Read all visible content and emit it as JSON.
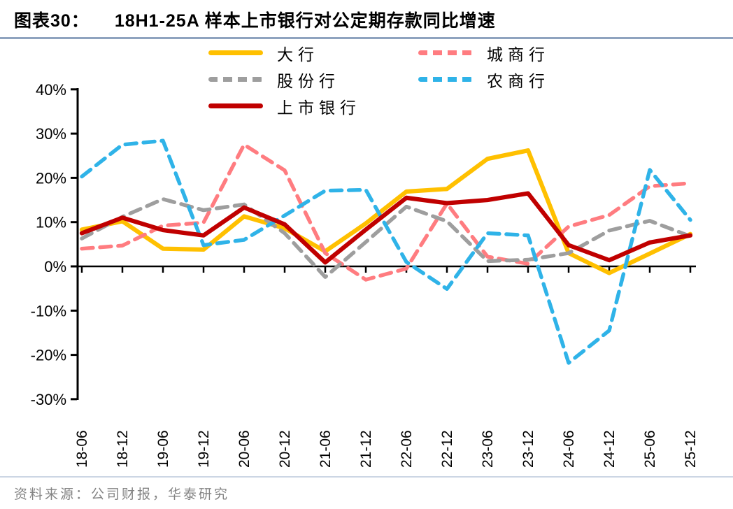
{
  "header": {
    "label": "图表30：",
    "title": "18H1-25A 样本上市银行对公定期存款同比增速"
  },
  "source": {
    "text": "资料来源：公司财报，华泰研究"
  },
  "colors": {
    "title_rule": "#8fa3bf",
    "source_rule": "#ccd6e4",
    "axis": "#000000",
    "source_text": "#848484"
  },
  "chart_data": {
    "type": "line",
    "title": "18H1-25A 样本上市银行对公定期存款同比增速",
    "xlabel": "",
    "ylabel": "",
    "ylim": [
      -30,
      40
    ],
    "ytick_step": 10,
    "ytick_format": "percent",
    "grid": false,
    "legend_position": "top",
    "categories": [
      "18-06",
      "18-12",
      "19-06",
      "19-12",
      "20-06",
      "20-12",
      "21-06",
      "21-12",
      "22-06",
      "22-12",
      "23-06",
      "23-12",
      "24-06",
      "24-12",
      "25-06",
      "25-12"
    ],
    "series": [
      {
        "name": "大行",
        "color": "#FFC000",
        "style": "solid",
        "values": [
          8.3,
          10.2,
          4.0,
          3.8,
          11.3,
          8.6,
          3.4,
          9.7,
          16.9,
          17.5,
          24.3,
          26.2,
          3.0,
          -1.5,
          2.9,
          7.3
        ]
      },
      {
        "name": "城商行",
        "color": "#FF7C80",
        "style": "dashed",
        "values": [
          4.0,
          4.7,
          9.2,
          9.9,
          27.5,
          21.7,
          3.0,
          -3.0,
          -0.5,
          14.2,
          2.2,
          0.6,
          9.0,
          11.6,
          18.1,
          18.8
        ]
      },
      {
        "name": "股份行",
        "color": "#9E9E9E",
        "style": "dashed",
        "values": [
          6.3,
          11.2,
          15.2,
          12.7,
          14.0,
          7.5,
          -2.4,
          5.5,
          13.5,
          10.2,
          1.2,
          1.5,
          3.0,
          8.1,
          10.3,
          6.8
        ]
      },
      {
        "name": "农商行",
        "color": "#2FB3E8",
        "style": "dashed",
        "values": [
          20.3,
          27.5,
          28.4,
          4.8,
          6.0,
          11.5,
          17.1,
          17.3,
          1.0,
          -5.1,
          7.5,
          7.0,
          -21.8,
          -14.5,
          21.8,
          10.5
        ]
      },
      {
        "name": "上市银行",
        "color": "#C00000",
        "style": "solid",
        "values": [
          7.5,
          11.0,
          8.2,
          7.0,
          13.3,
          9.5,
          0.9,
          8.3,
          15.5,
          14.3,
          15.0,
          16.5,
          4.8,
          1.4,
          5.4,
          7.0
        ]
      }
    ],
    "legend_order": [
      "大行",
      "城商行",
      "股份行",
      "农商行",
      "上市银行"
    ]
  }
}
